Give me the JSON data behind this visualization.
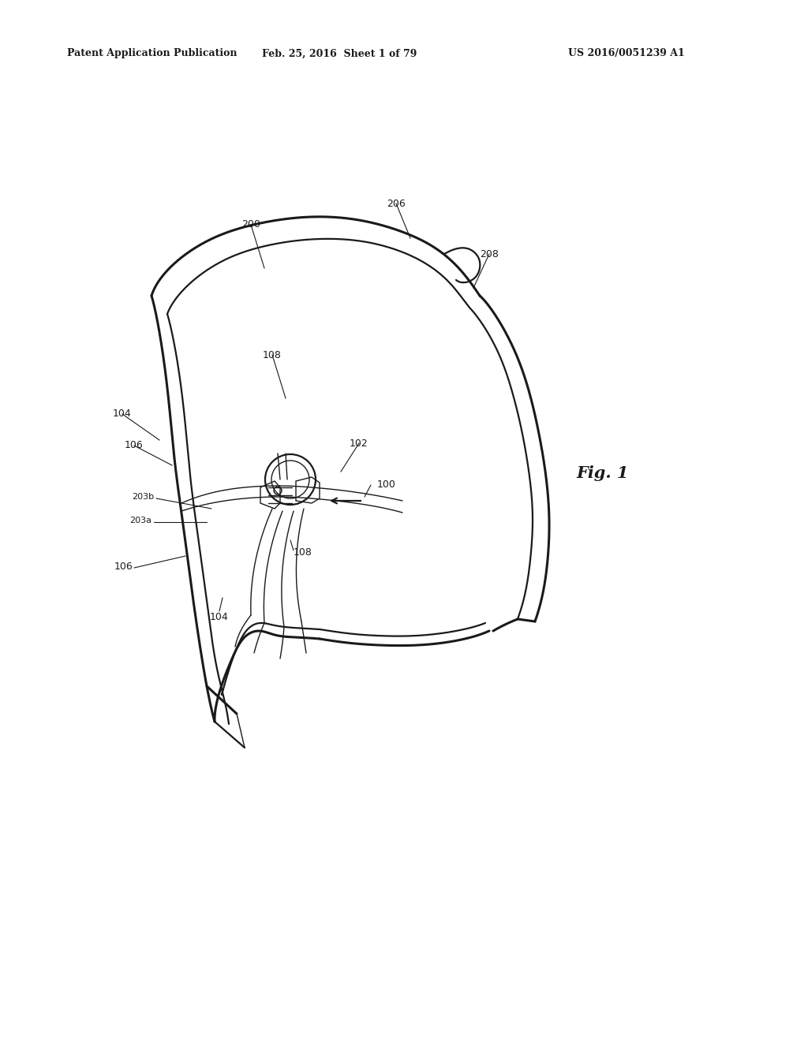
{
  "bg_color": "#ffffff",
  "line_color": "#1a1a1a",
  "header_left": "Patent Application Publication",
  "header_center": "Feb. 25, 2016  Sheet 1 of 79",
  "header_right": "US 2016/0051239 A1",
  "fig_label": "Fig. 1",
  "lw_thin": 1.0,
  "lw_med": 1.6,
  "lw_thick": 2.2
}
